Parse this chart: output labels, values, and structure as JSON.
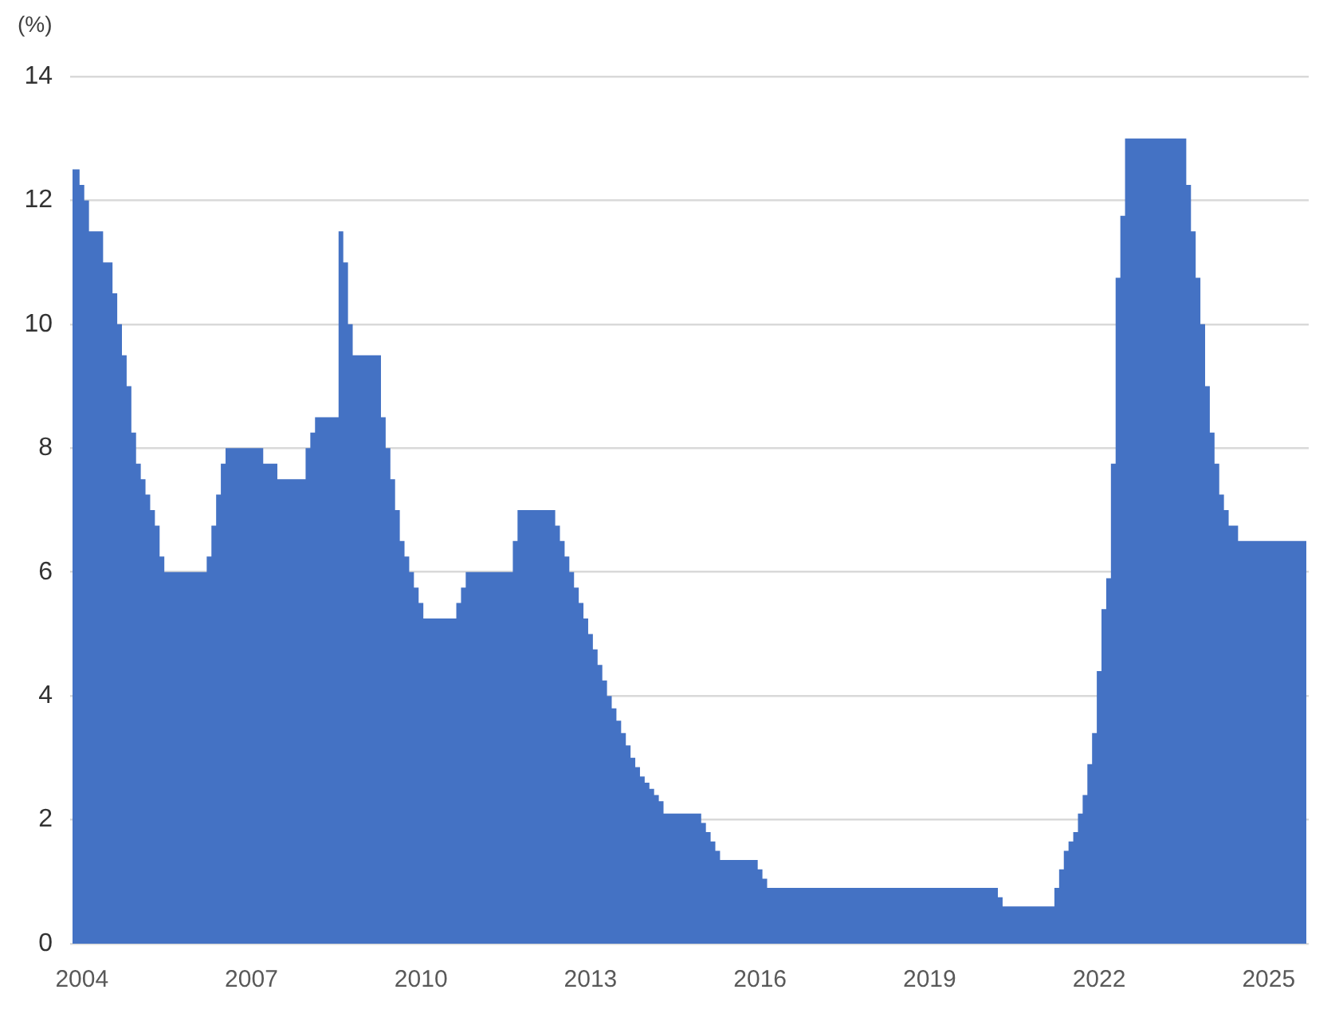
{
  "chart_data": {
    "type": "area",
    "ylabel": "(%)",
    "categories": [
      null,
      null,
      "2004",
      null,
      null,
      null,
      null,
      null,
      null,
      null,
      null,
      null,
      null,
      null,
      null,
      null,
      null,
      null,
      null,
      null,
      null,
      null,
      null,
      null,
      null,
      null,
      null,
      null,
      null,
      null,
      null,
      null,
      null,
      null,
      null,
      null,
      null,
      null,
      "2007",
      null,
      null,
      null,
      null,
      null,
      null,
      null,
      null,
      null,
      null,
      null,
      null,
      null,
      null,
      null,
      null,
      null,
      null,
      null,
      null,
      null,
      null,
      null,
      null,
      null,
      null,
      null,
      null,
      null,
      null,
      null,
      null,
      null,
      null,
      null,
      "2010",
      null,
      null,
      null,
      null,
      null,
      null,
      null,
      null,
      null,
      null,
      null,
      null,
      null,
      null,
      null,
      null,
      null,
      null,
      null,
      null,
      null,
      null,
      null,
      null,
      null,
      null,
      null,
      null,
      null,
      null,
      null,
      null,
      null,
      null,
      null,
      "2013",
      null,
      null,
      null,
      null,
      null,
      null,
      null,
      null,
      null,
      null,
      null,
      null,
      null,
      null,
      null,
      null,
      null,
      null,
      null,
      null,
      null,
      null,
      null,
      null,
      null,
      null,
      null,
      null,
      null,
      null,
      null,
      null,
      null,
      null,
      null,
      "2016",
      null,
      null,
      null,
      null,
      null,
      null,
      null,
      null,
      null,
      null,
      null,
      null,
      null,
      null,
      null,
      null,
      null,
      null,
      null,
      null,
      null,
      null,
      null,
      null,
      null,
      null,
      null,
      null,
      null,
      null,
      null,
      null,
      null,
      null,
      null,
      "2019",
      null,
      null,
      null,
      null,
      null,
      null,
      null,
      null,
      null,
      null,
      null,
      null,
      null,
      null,
      null,
      null,
      null,
      null,
      null,
      null,
      null,
      null,
      null,
      null,
      null,
      null,
      null,
      null,
      null,
      null,
      null,
      null,
      null,
      null,
      null,
      "2022",
      null,
      null,
      null,
      null,
      null,
      null,
      null,
      null,
      null,
      null,
      null,
      null,
      null,
      null,
      null,
      null,
      null,
      null,
      null,
      null,
      null,
      null,
      null,
      null,
      null,
      null,
      null,
      null,
      null,
      null,
      null,
      null,
      null,
      null,
      null,
      "2025",
      null,
      null,
      null,
      null,
      null,
      null,
      null,
      null
    ],
    "values": [
      12.5,
      12.5,
      12.25,
      12,
      11.5,
      11.5,
      11.5,
      11,
      11,
      10.5,
      10,
      9.5,
      9,
      8.25,
      7.75,
      7.5,
      7.25,
      7,
      6.75,
      6.25,
      6,
      6,
      6,
      6,
      6,
      6,
      6,
      6,
      6,
      6.25,
      6.75,
      7.25,
      7.75,
      8,
      8,
      8,
      8,
      8,
      8,
      8,
      8,
      7.75,
      7.75,
      7.75,
      7.5,
      7.5,
      7.5,
      7.5,
      7.5,
      7.5,
      8,
      8.25,
      8.5,
      8.5,
      8.5,
      8.5,
      8.5,
      11.5,
      11,
      10,
      9.5,
      9.5,
      9.5,
      9.5,
      9.5,
      9.5,
      8.5,
      8,
      7.5,
      7,
      6.5,
      6.25,
      6,
      5.75,
      5.5,
      5.25,
      5.25,
      5.25,
      5.25,
      5.25,
      5.25,
      5.25,
      5.5,
      5.75,
      6,
      6,
      6,
      6,
      6,
      6,
      6,
      6,
      6,
      6,
      6.5,
      7,
      7,
      7,
      7,
      7,
      7,
      7,
      7,
      6.75,
      6.5,
      6.25,
      6,
      5.75,
      5.5,
      5.25,
      5,
      4.75,
      4.5,
      4.25,
      4,
      3.8,
      3.6,
      3.4,
      3.2,
      3,
      2.85,
      2.7,
      2.6,
      2.5,
      2.4,
      2.3,
      2.1,
      2.1,
      2.1,
      2.1,
      2.1,
      2.1,
      2.1,
      2.1,
      1.95,
      1.8,
      1.65,
      1.5,
      1.35,
      1.35,
      1.35,
      1.35,
      1.35,
      1.35,
      1.35,
      1.35,
      1.2,
      1.05,
      0.9,
      0.9,
      0.9,
      0.9,
      0.9,
      0.9,
      0.9,
      0.9,
      0.9,
      0.9,
      0.9,
      0.9,
      0.9,
      0.9,
      0.9,
      0.9,
      0.9,
      0.9,
      0.9,
      0.9,
      0.9,
      0.9,
      0.9,
      0.9,
      0.9,
      0.9,
      0.9,
      0.9,
      0.9,
      0.9,
      0.9,
      0.9,
      0.9,
      0.9,
      0.9,
      0.9,
      0.9,
      0.9,
      0.9,
      0.9,
      0.9,
      0.9,
      0.9,
      0.9,
      0.9,
      0.9,
      0.9,
      0.9,
      0.9,
      0.75,
      0.6,
      0.6,
      0.6,
      0.6,
      0.6,
      0.6,
      0.6,
      0.6,
      0.6,
      0.6,
      0.6,
      0.9,
      1.2,
      1.5,
      1.65,
      1.8,
      2.1,
      2.4,
      2.9,
      3.4,
      4.4,
      5.4,
      5.9,
      7.75,
      10.75,
      11.75,
      13,
      13,
      13,
      13,
      13,
      13,
      13,
      13,
      13,
      13,
      13,
      13,
      13,
      12.25,
      11.5,
      10.75,
      10,
      9,
      8.25,
      7.75,
      7.25,
      7,
      6.75,
      6.75,
      6.5,
      6.5,
      6.5,
      6.5,
      6.5,
      6.5,
      6.5,
      6.5,
      6.5,
      6.5,
      6.5,
      6.5,
      6.5,
      6.5,
      6.5
    ],
    "color": "#4472c4",
    "ylim": [
      0,
      14
    ],
    "yticks": [
      0,
      2,
      4,
      6,
      8,
      10,
      12,
      14
    ],
    "grid": "y",
    "legend": false
  }
}
